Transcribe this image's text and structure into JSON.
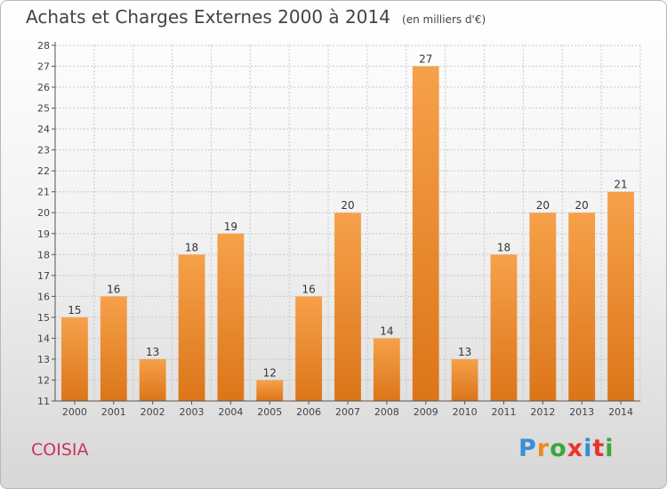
{
  "header": {
    "title": "Achats et Charges Externes 2000 à 2014",
    "unit": "(en milliers d'€)"
  },
  "footer": {
    "place": "COISIA",
    "brand": "Proxiti",
    "brand_colors": [
      "#3a8fd8",
      "#f08a1c",
      "#3aa83a",
      "#e8342d",
      "#2f8fd8",
      "#e8342d",
      "#3aa83a"
    ]
  },
  "colors": {
    "bar_top": "#f6a14a",
    "bar_bottom": "#dc7519",
    "grid": "#c8c8c8",
    "axis": "#555555"
  },
  "chart_data": {
    "type": "bar",
    "title": "Achats et Charges Externes 2000 à 2014",
    "subtitle": "(en milliers d'€)",
    "categories": [
      "2000",
      "2001",
      "2002",
      "2003",
      "2004",
      "2005",
      "2006",
      "2007",
      "2008",
      "2009",
      "2010",
      "2011",
      "2012",
      "2013",
      "2014"
    ],
    "values": [
      15,
      16,
      13,
      18,
      19,
      12,
      16,
      20,
      14,
      27,
      13,
      18,
      20,
      20,
      21
    ],
    "ylim": [
      11,
      28
    ],
    "yticks": [
      11,
      12,
      13,
      14,
      15,
      16,
      17,
      18,
      19,
      20,
      21,
      22,
      23,
      24,
      25,
      26,
      27,
      28
    ],
    "grid": true,
    "data_labels": true
  }
}
